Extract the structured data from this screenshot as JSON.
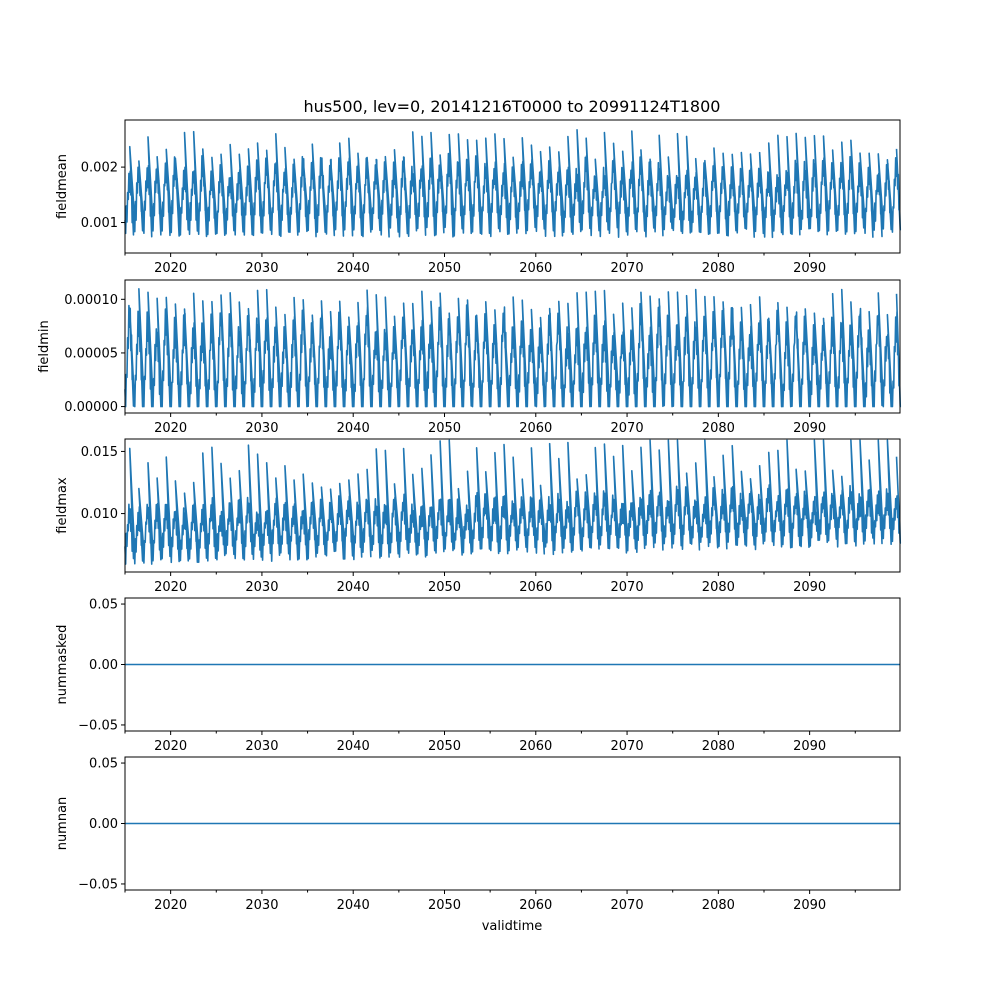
{
  "chart_data": {
    "type": "line",
    "title": "hus500, lev=0, 20141216T0000 to 20991124T1800",
    "xlabel": "validtime",
    "xlim": [
      2015.0,
      2099.9
    ],
    "x_ticks": [
      2020,
      2030,
      2040,
      2050,
      2060,
      2070,
      2080,
      2090
    ],
    "x_tick_labels": [
      "2020",
      "2030",
      "2040",
      "2050",
      "2060",
      "2070",
      "2080",
      "2090"
    ],
    "x_minor_ticks": [
      2015,
      2025,
      2035,
      2045,
      2055,
      2065,
      2075,
      2085,
      2095
    ],
    "line_color": "#1f77b4",
    "grid": false,
    "panels": [
      {
        "ylabel": "fieldmean",
        "ylim": [
          0.00045,
          0.00285
        ],
        "y_ticks": [
          0.001,
          0.002
        ],
        "y_tick_labels": [
          "0.001",
          "0.002"
        ],
        "series": {
          "period_years": 1,
          "trough_center": 0.00095,
          "peak_center": 0.0019,
          "noise": 0.00022,
          "trend_per_year": 0.0,
          "data_min": 0.00055,
          "data_max": 0.00272
        }
      },
      {
        "ylabel": "fieldmin",
        "ylim": [
          -6e-06,
          0.000118
        ],
        "y_ticks": [
          0.0,
          5e-05,
          0.0001
        ],
        "y_tick_labels": [
          "0.00000",
          "0.00005",
          "0.00010"
        ],
        "series": {
          "period_years": 1,
          "trough_center": 3e-06,
          "peak_center": 7.2e-05,
          "noise": 1.4e-05,
          "trend_per_year": 0.0,
          "data_min": 0.0,
          "data_max": 0.000112
        }
      },
      {
        "ylabel": "fieldmax",
        "ylim": [
          0.0053,
          0.016
        ],
        "y_ticks": [
          0.01,
          0.015
        ],
        "y_tick_labels": [
          "0.010",
          "0.015"
        ],
        "series": {
          "period_years": 1,
          "trough_center": 0.0068,
          "peak_center": 0.0098,
          "noise": 0.0009,
          "trend_per_year": 1.8e-05,
          "data_min": 0.0056,
          "data_max": 0.0159
        }
      },
      {
        "ylabel": "nummasked",
        "ylim": [
          -0.055,
          0.055
        ],
        "y_ticks": [
          -0.05,
          0.0,
          0.05
        ],
        "y_tick_labels": [
          "−0.05",
          "0.00",
          "0.05"
        ],
        "constant_value": 0.0
      },
      {
        "ylabel": "numnan",
        "ylim": [
          -0.055,
          0.055
        ],
        "y_ticks": [
          -0.05,
          0.0,
          0.05
        ],
        "y_tick_labels": [
          "−0.05",
          "0.00",
          "0.05"
        ],
        "constant_value": 0.0
      }
    ]
  }
}
